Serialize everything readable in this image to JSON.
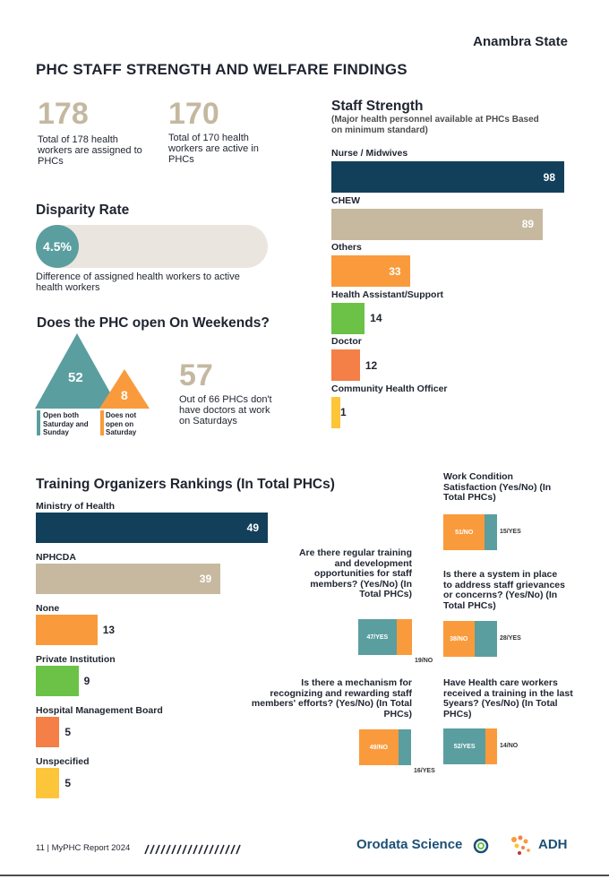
{
  "header": {
    "state": "Anambra State",
    "title": "PHC STAFF STRENGTH AND WELFARE FINDINGS"
  },
  "stats": {
    "assigned": {
      "value": "178",
      "text": "Total of 178 health workers are assigned to PHCs"
    },
    "active": {
      "value": "170",
      "text": "Total of 170 health workers are active in PHCs"
    }
  },
  "disparity": {
    "title": "Disparity Rate",
    "value": "4.5%",
    "fraction": 0.045,
    "text": "Difference of assigned health workers to active health workers"
  },
  "weekends": {
    "title": "Does the PHC open On Weekends?",
    "open_value": "52",
    "open_label": "Open both Saturday and Sunday",
    "closed_value": "8",
    "closed_label": "Does not open on Saturday",
    "doctors_value": "57",
    "doctors_text": "Out of 66 PHCs don't have doctors at work on Saturdays"
  },
  "staff_strength": {
    "title": "Staff Strength",
    "subtitle": "(Major health personnel available at PHCs Based on minimum standard)",
    "max": 98,
    "bars": [
      {
        "label": "Nurse / Midwives",
        "value": 98,
        "color": "#12405a",
        "inside": true
      },
      {
        "label": "CHEW",
        "value": 89,
        "color": "#c6b9a0",
        "inside": true
      },
      {
        "label": "Others",
        "value": 33,
        "color": "#f99b3c",
        "inside": true
      },
      {
        "label": "Health Assistant/Support",
        "value": 14,
        "color": "#6bc247",
        "inside": false
      },
      {
        "label": "Doctor",
        "value": 12,
        "color": "#f47f47",
        "inside": false
      },
      {
        "label": "Community Health Officer",
        "value": 1,
        "color": "#fcc53a",
        "inside": false
      }
    ]
  },
  "training": {
    "title": "Training Organizers Rankings (In Total PHCs)",
    "max": 49,
    "bars": [
      {
        "label": "Ministry of Health",
        "value": 49,
        "color": "#12405a",
        "inside": true
      },
      {
        "label": "NPHCDA",
        "value": 39,
        "color": "#c6b9a0",
        "inside": true
      },
      {
        "label": "None",
        "value": 13,
        "color": "#f99b3c",
        "inside": false
      },
      {
        "label": "Private Institution",
        "value": 9,
        "color": "#6bc247",
        "inside": false
      },
      {
        "label": "Hospital Management Board",
        "value": 5,
        "color": "#f47f47",
        "inside": false
      },
      {
        "label": "Unspecified",
        "value": 5,
        "color": "#fcc53a",
        "inside": false
      }
    ]
  },
  "questions": {
    "work_condition": {
      "title": "Work Condition Satisfaction (Yes/No) (In Total PHCs)",
      "first_label": "51/NO",
      "first_value": 51,
      "first_color": "#f99b3c",
      "second_label": "15/YES",
      "second_value": 15,
      "second_color": "#5b9ea0"
    },
    "development": {
      "title": "Are there regular training and development opportunities for staff members? (Yes/No) (In Total PHCs)",
      "first_label": "47/YES",
      "first_value": 47,
      "first_color": "#5b9ea0",
      "second_label": "19/NO",
      "second_value": 19,
      "second_color": "#f99b3c"
    },
    "grievances": {
      "title": "Is there a system in place to address staff grievances or concerns? (Yes/No) (In Total PHCs)",
      "first_label": "38/NO",
      "first_value": 38,
      "first_color": "#f99b3c",
      "second_label": "28/YES",
      "second_value": 28,
      "second_color": "#5b9ea0"
    },
    "recognition": {
      "title": "Is there a mechanism for recognizing and rewarding staff members' efforts? (Yes/No) (In Total PHCs)",
      "first_label": "49/NO",
      "first_value": 49,
      "first_color": "#f99b3c",
      "second_label": "16/YES",
      "second_value": 16,
      "second_color": "#5b9ea0"
    },
    "trained": {
      "title": "Have Health care workers received a training in the last 5years? (Yes/No) (In Total PHCs)",
      "first_label": "52/YES",
      "first_value": 52,
      "first_color": "#5b9ea0",
      "second_label": "14/NO",
      "second_value": 14,
      "second_color": "#f99b3c"
    }
  },
  "footer": {
    "page": "11 | MyPHC Report 2024",
    "logo1": "Orodata Science",
    "logo2": "ADH"
  }
}
